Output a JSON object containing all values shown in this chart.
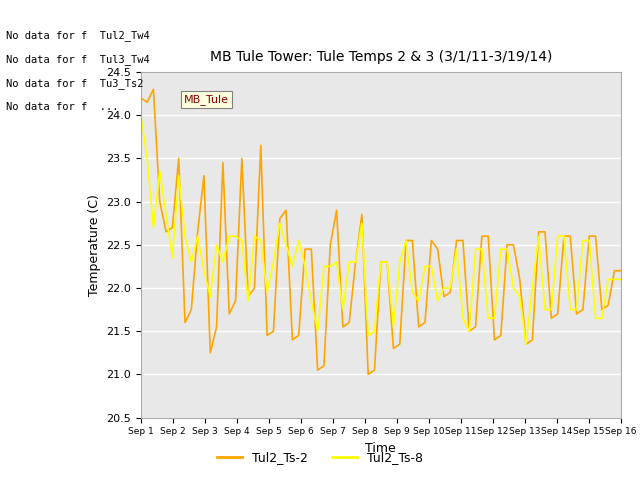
{
  "title": "MB Tule Tower: Tule Temps 2 & 3 (3/1/11-3/19/14)",
  "xlabel": "Time",
  "ylabel": "Temperature (C)",
  "ylim": [
    20.5,
    24.5
  ],
  "yticks": [
    20.5,
    21.0,
    21.5,
    22.0,
    22.5,
    23.0,
    23.5,
    24.0,
    24.5
  ],
  "xtick_labels": [
    "Sep 1",
    "Sep 2",
    "Sep 3",
    "Sep 4",
    "Sep 5",
    "Sep 6",
    "Sep 7",
    "Sep 8",
    "Sep 9",
    "Sep 10",
    "Sep 11",
    "Sep 12",
    "Sep 13",
    "Sep 14",
    "Sep 15",
    "Sep 16"
  ],
  "color_ts2": "#FFA500",
  "color_ts8": "#FFFF00",
  "legend_labels": [
    "Tul2_Ts-2",
    "Tul2_Ts-8"
  ],
  "bg_color": "#E8E8E8",
  "fig_bg": "#FFFFFF",
  "no_data_texts": [
    "No data for f  Tul2_Tw4",
    "No data for f  Tul3_Tw4",
    "No data for f  Tu3_Ts2",
    "No data for f  ..."
  ],
  "tooltip_text": "MB_Tule",
  "ts2_y": [
    24.2,
    24.15,
    24.3,
    23.0,
    22.65,
    22.7,
    23.5,
    21.6,
    21.75,
    22.65,
    23.3,
    21.25,
    21.55,
    23.45,
    21.7,
    21.85,
    23.5,
    21.9,
    22.0,
    23.65,
    21.45,
    21.5,
    22.8,
    22.9,
    21.4,
    21.45,
    22.45,
    22.45,
    21.05,
    21.1,
    22.5,
    22.9,
    21.55,
    21.6,
    22.3,
    22.85,
    21.0,
    21.05,
    22.3,
    22.3,
    21.3,
    21.35,
    22.55,
    22.55,
    21.55,
    21.6,
    22.55,
    22.45,
    21.9,
    21.95,
    22.55,
    22.55,
    21.5,
    21.55,
    22.6,
    22.6,
    21.4,
    21.45,
    22.5,
    22.5,
    22.1,
    21.35,
    21.4,
    22.65,
    22.65,
    21.65,
    21.7,
    22.6,
    22.6,
    21.7,
    21.75,
    22.6,
    22.6,
    21.75,
    21.8,
    22.2,
    22.2
  ],
  "ts8_y": [
    24.0,
    23.5,
    22.7,
    23.35,
    22.85,
    22.35,
    23.3,
    22.6,
    22.3,
    22.6,
    22.2,
    21.9,
    22.5,
    22.3,
    22.6,
    22.6,
    22.55,
    21.85,
    22.6,
    22.55,
    21.95,
    22.3,
    22.75,
    22.5,
    22.25,
    22.55,
    22.25,
    21.85,
    21.5,
    22.25,
    22.25,
    22.3,
    21.75,
    22.3,
    22.3,
    22.75,
    21.45,
    21.5,
    22.3,
    22.3,
    21.55,
    22.3,
    22.55,
    21.95,
    21.85,
    22.25,
    22.25,
    21.85,
    22.0,
    22.0,
    22.45,
    21.65,
    21.5,
    22.45,
    22.45,
    21.65,
    21.65,
    22.45,
    22.45,
    22.0,
    21.9,
    21.35,
    22.0,
    22.6,
    21.75,
    21.75,
    22.6,
    22.6,
    21.75,
    21.75,
    22.55,
    22.55,
    21.65,
    21.65,
    22.1,
    22.1,
    22.1
  ]
}
